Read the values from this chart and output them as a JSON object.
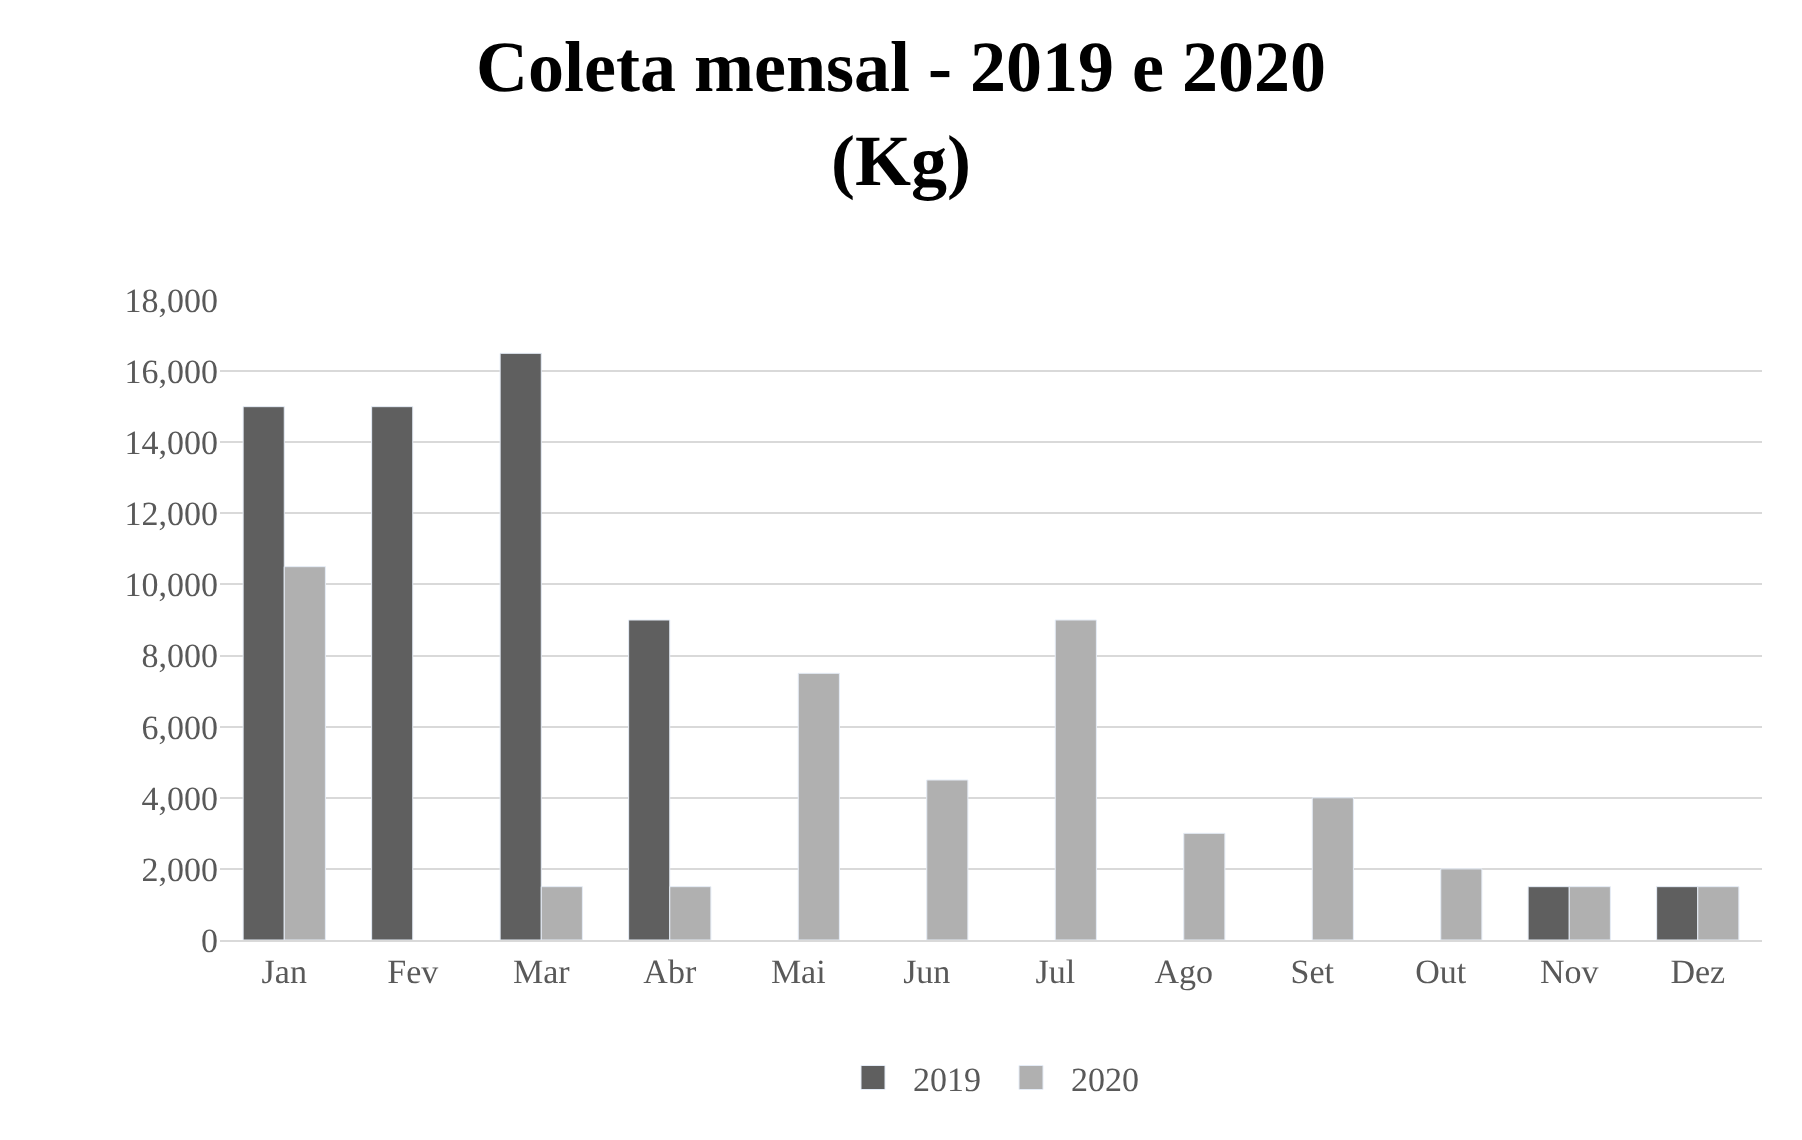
{
  "chart_data": {
    "type": "bar",
    "title": "Coleta mensal - 2019 e 2020 (Kg)",
    "categories": [
      "Jan",
      "Fev",
      "Mar",
      "Abr",
      "Mai",
      "Jun",
      "Jul",
      "Ago",
      "Set",
      "Out",
      "Nov",
      "Dez"
    ],
    "series": [
      {
        "name": "2019",
        "color": "#5f5f5f",
        "values": [
          15000,
          15000,
          16500,
          9000,
          null,
          null,
          null,
          null,
          null,
          null,
          1500,
          1500
        ]
      },
      {
        "name": "2020",
        "color": "#b0b0b0",
        "values": [
          10500,
          null,
          1500,
          1500,
          7500,
          4500,
          9000,
          3000,
          4000,
          2000,
          1500,
          1500
        ]
      }
    ],
    "ylim": [
      0,
      18000
    ],
    "yticks": [
      {
        "value": 0,
        "label": "0"
      },
      {
        "value": 2000,
        "label": "2,000"
      },
      {
        "value": 4000,
        "label": "4,000"
      },
      {
        "value": 6000,
        "label": "6,000"
      },
      {
        "value": 8000,
        "label": "8,000"
      },
      {
        "value": 10000,
        "label": "10,000"
      },
      {
        "value": 12000,
        "label": "12,000"
      },
      {
        "value": 14000,
        "label": "14,000"
      },
      {
        "value": 16000,
        "label": "16,000"
      },
      {
        "value": 18000,
        "label": "18,000"
      }
    ],
    "grid": "y",
    "legend": "bottom"
  }
}
